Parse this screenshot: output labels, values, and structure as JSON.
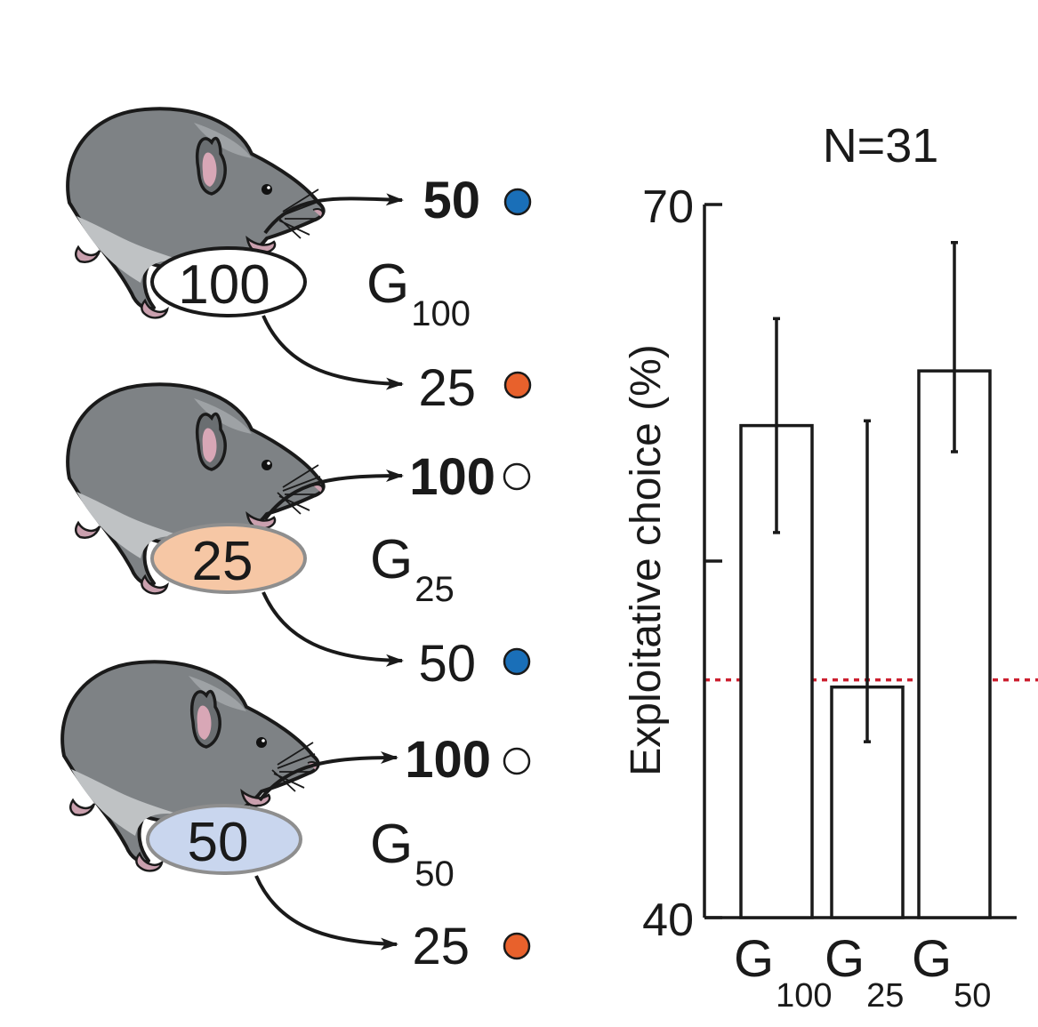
{
  "groups": [
    {
      "id": "G100",
      "sure_label": "100",
      "fill": "#ffffff",
      "cond_main": "G",
      "cond_sub": "100",
      "top_choice": "50",
      "top_bold": true,
      "top_dot": "#1a6fb8",
      "bottom_choice": "25",
      "bottom_bold": false,
      "bottom_dot": "#e8612c"
    },
    {
      "id": "G25",
      "sure_label": "25",
      "fill": "#f6c7a5",
      "cond_main": "G",
      "cond_sub": "25",
      "top_choice": "100",
      "top_bold": true,
      "top_dot": "#ffffff",
      "bottom_choice": "50",
      "bottom_bold": false,
      "bottom_dot": "#1a6fb8"
    },
    {
      "id": "G50",
      "sure_label": "50",
      "fill": "#c9d6ee",
      "cond_main": "G",
      "cond_sub": "50",
      "top_choice": "100",
      "top_bold": true,
      "top_dot": "#ffffff",
      "bottom_choice": "25",
      "bottom_bold": false,
      "bottom_dot": "#e8612c"
    }
  ],
  "chart_data": {
    "type": "bar",
    "title": "N=31",
    "ylabel": "Exploitative choice (%)",
    "ylim": [
      40,
      70
    ],
    "yticks": [
      40,
      55,
      70
    ],
    "ytick_labels": [
      "40",
      "",
      "70"
    ],
    "reference_line": 50,
    "reference_color": "#cc1f2f",
    "categories": [
      {
        "main": "G",
        "sub": "100"
      },
      {
        "main": "G",
        "sub": "25"
      },
      {
        "main": "G",
        "sub": "50"
      }
    ],
    "values": [
      60.7,
      49.7,
      63.0
    ],
    "error": [
      [
        56.2,
        65.2
      ],
      [
        47.4,
        60.9
      ],
      [
        59.6,
        68.4
      ]
    ]
  }
}
